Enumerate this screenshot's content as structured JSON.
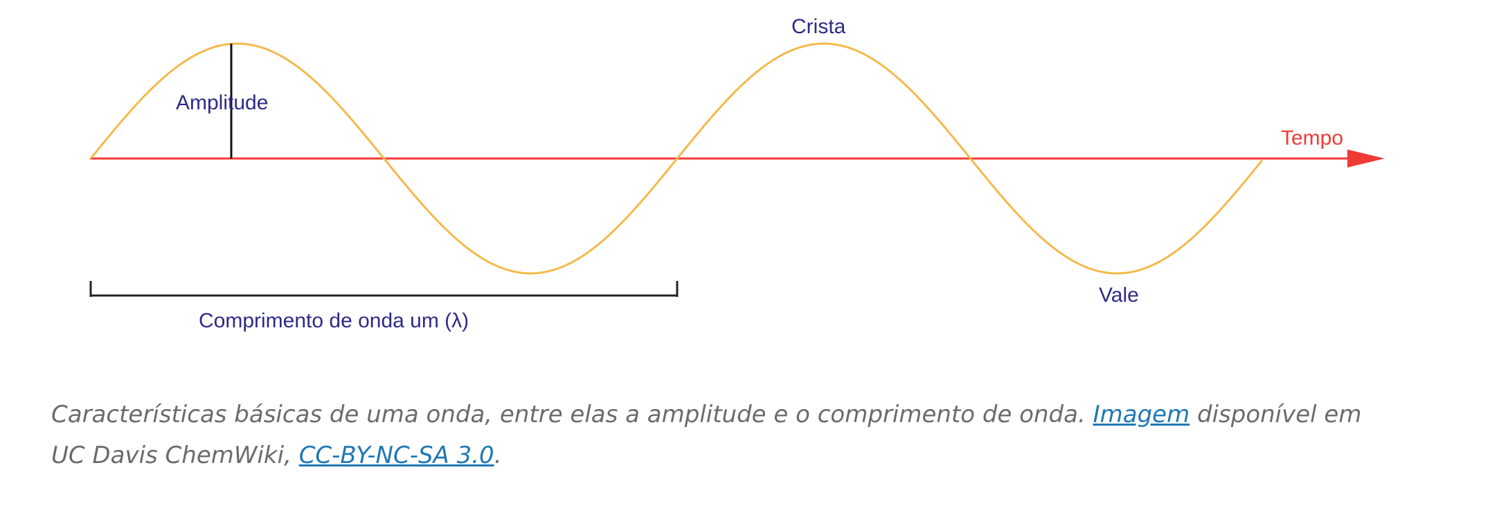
{
  "diagram": {
    "labels": {
      "crest": "Crista",
      "amplitude": "Amplitude",
      "time": "Tempo",
      "trough": "Vale",
      "wavelength": "Comprimento de onda um (λ)"
    },
    "colors": {
      "wave": "#F5B94A",
      "axis": "#F23A35",
      "text": "#2E2A86",
      "marker": "#111111"
    }
  },
  "caption": {
    "part1": "Características básicas de uma onda, entre elas a amplitude e o comprimento de onda. ",
    "link1": "Imagem",
    "part2": " disponível em UC Davis ChemWiki, ",
    "link2": "CC-BY-NC-SA 3.0",
    "part3": "."
  }
}
